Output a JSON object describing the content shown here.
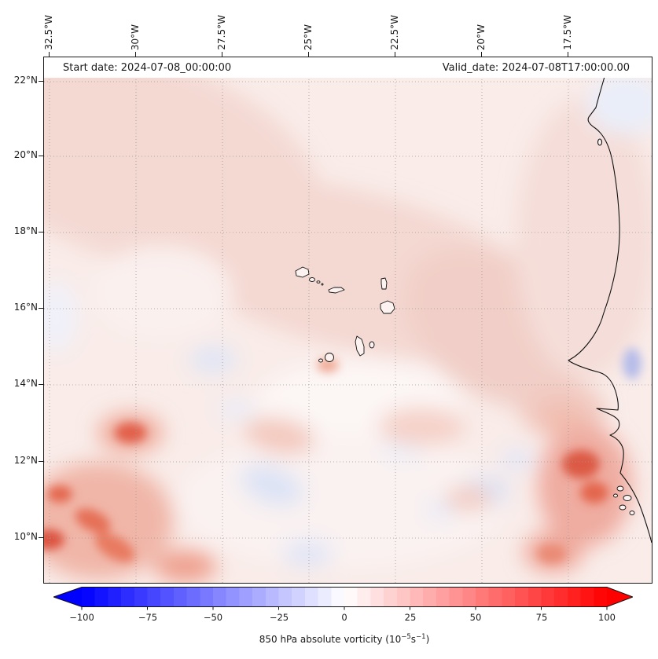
{
  "header": {
    "start_date": "Start date: 2024-07-08_00:00:00",
    "valid_date": "Valid_date: 2024-07-08T17:00:00.00"
  },
  "axes": {
    "top_ticks": [
      "32.5°W",
      "30°W",
      "27.5°W",
      "25°W",
      "22.5°W",
      "20°W",
      "17.5°W"
    ],
    "left_ticks": [
      "22°N",
      "20°N",
      "18°N",
      "16°N",
      "14°N",
      "12°N",
      "10°N"
    ]
  },
  "colorbar": {
    "tick_labels": [
      "−100",
      "−75",
      "−50",
      "−25",
      "0",
      "25",
      "50",
      "75",
      "100"
    ],
    "title_prefix": "850 hPa absolute vorticity (10",
    "title_sup1": "−5",
    "title_mid": "s",
    "title_sup2": "−1",
    "title_suffix": ")",
    "colormap": "bwr",
    "min_color": "#0000ff",
    "mid_color": "#ffffff",
    "max_color": "#ff0000",
    "extend": "both"
  },
  "chart_data": {
    "type": "heatmap",
    "title": "850 hPa absolute vorticity",
    "units": "10^-5 s^-1",
    "colormap": "bwr",
    "value_range": [
      -100,
      100
    ],
    "colorbar_ticks": [
      -100,
      -75,
      -50,
      -25,
      0,
      25,
      50,
      75,
      100
    ],
    "colorbar_extend": "both",
    "x_axis": {
      "label": "longitude",
      "ticks_deg_west": [
        32.5,
        30,
        27.5,
        25,
        22.5,
        20,
        17.5
      ],
      "range_deg_west": [
        32.7,
        15.1
      ]
    },
    "y_axis": {
      "label": "latitude",
      "ticks_deg_north": [
        22,
        20,
        18,
        16,
        14,
        12,
        10
      ],
      "range_deg_north": [
        8.8,
        22.6
      ]
    },
    "grid": true,
    "annotations": [
      "Start date: 2024-07-08_00:00:00",
      "Valid_date: 2024-07-08T17:00:00.00"
    ],
    "field_summary": {
      "background_value": 8,
      "description": "Weak positive vorticity (5-20) over most of the domain, with a broader pink band from the northwest through the Cape Verde islands toward the African coast; scattered weak negative pockets south of 15N",
      "maxima": [
        {
          "lon_w": 30.2,
          "lat_n": 12.7,
          "value": 45
        },
        {
          "lon_w": 32.4,
          "lat_n": 10.3,
          "value": 50
        },
        {
          "lon_w": 31.2,
          "lat_n": 11.1,
          "value": 35
        },
        {
          "lon_w": 17.2,
          "lat_n": 12.1,
          "value": 60
        },
        {
          "lon_w": 17.7,
          "lat_n": 10.6,
          "value": 30
        },
        {
          "lon_w": 24.3,
          "lat_n": 14.9,
          "value": 20
        },
        {
          "lon_w": 25.8,
          "lat_n": 12.8,
          "value": 25
        }
      ],
      "minima": [
        {
          "lon_w": 27.8,
          "lat_n": 14.6,
          "value": -12
        },
        {
          "lon_w": 26.1,
          "lat_n": 11.3,
          "value": -15
        },
        {
          "lon_w": 20.0,
          "lat_n": 11.2,
          "value": -15
        },
        {
          "lon_w": 16.1,
          "lat_n": 14.6,
          "value": -30
        },
        {
          "lon_w": 15.8,
          "lat_n": 21.4,
          "value": -10
        }
      ]
    },
    "geography": [
      "Cape Verde islands",
      "West African coastline (Mauritania, Senegal, Gambia, Guinea-Bissau)"
    ]
  }
}
